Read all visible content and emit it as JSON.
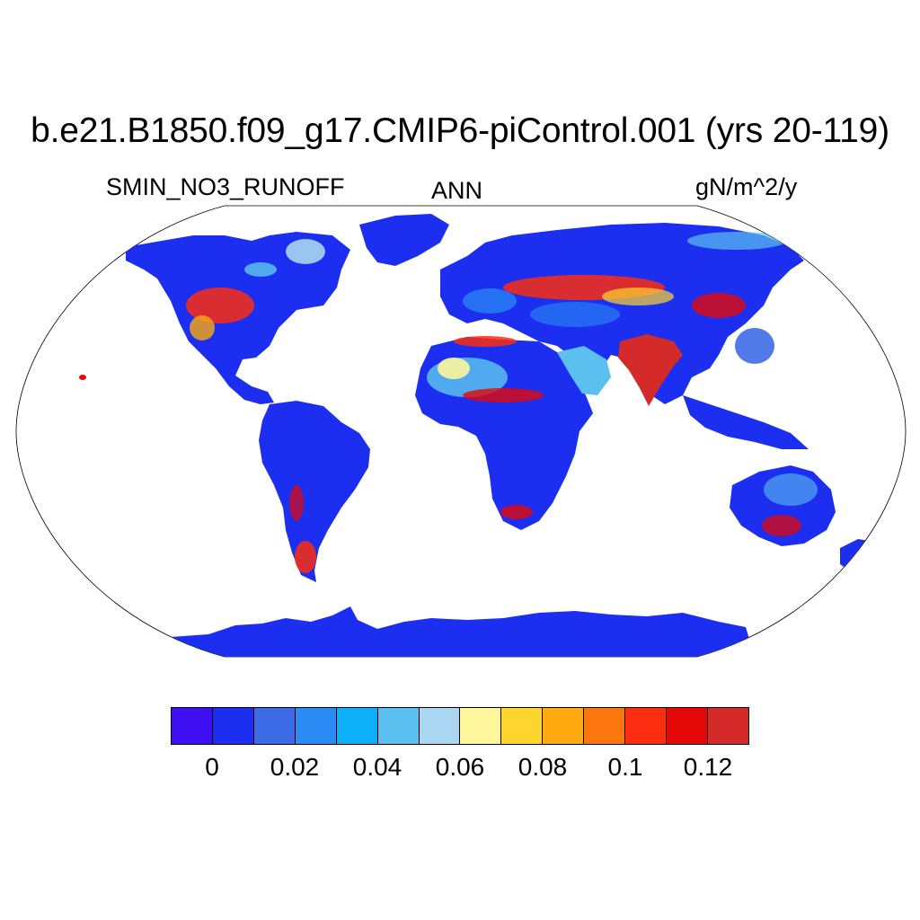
{
  "title": "b.e21.B1850.f09_g17.CMIP6-piControl.001 (yrs 20-119)",
  "left_label": "SMIN_NO3_RUNOFF",
  "center_label": "ANN",
  "right_label": "gN/m^2/y",
  "colorbar": {
    "colors": [
      "#3f0ff4",
      "#1c2ff0",
      "#3d6be5",
      "#2a8bf4",
      "#0db0f8",
      "#5bbff0",
      "#aad6f1",
      "#fdf69a",
      "#fdd52e",
      "#fda90f",
      "#fb760f",
      "#fb2d10",
      "#e30707",
      "#d42a2a"
    ],
    "tick_labels": [
      "0",
      "0.02",
      "0.04",
      "0.06",
      "0.08",
      "0.1",
      "0.12"
    ]
  },
  "chart_data": {
    "type": "heatmap",
    "projection": "Robinson",
    "title": "b.e21.B1850.f09_g17.CMIP6-piControl.001 (yrs 20-119)",
    "variable": "SMIN_NO3_RUNOFF",
    "season": "ANN",
    "units": "gN/m^2/y",
    "color_levels": [
      0,
      0.01,
      0.02,
      0.03,
      0.04,
      0.05,
      0.06,
      0.07,
      0.08,
      0.09,
      0.1,
      0.11,
      0.12
    ],
    "colorbar_ticks": [
      0,
      0.02,
      0.04,
      0.06,
      0.08,
      0.1,
      0.12
    ]
  }
}
